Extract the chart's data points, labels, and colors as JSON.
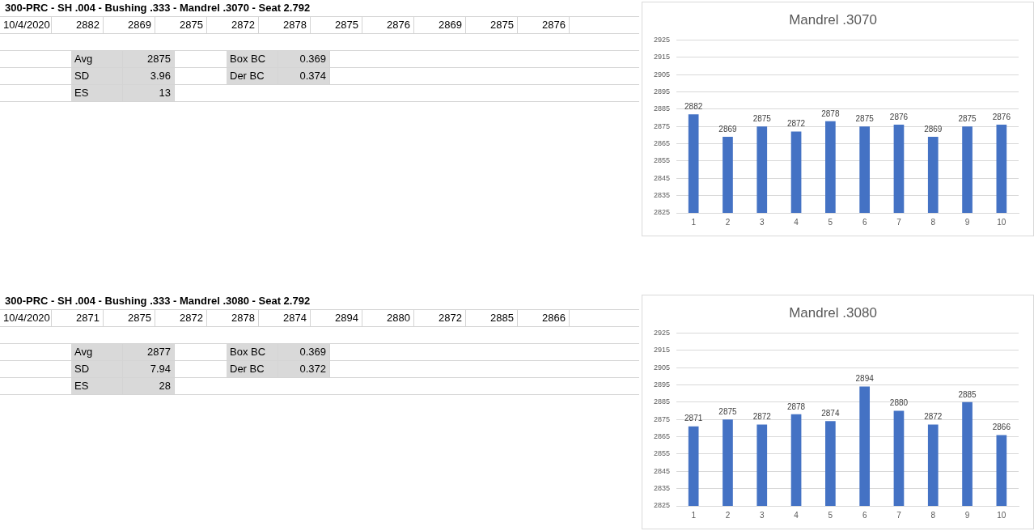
{
  "chart_data": [
    {
      "type": "other",
      "title": "300-PRC - SH .004 - Bushing .333 - Mandrel .3070 - Seat 2.792",
      "annotations": [
        "10/4/2020",
        "2882",
        "2869",
        "2875",
        "2872",
        "2878",
        "2875",
        "2876",
        "2869",
        "2875",
        "2876",
        "Avg",
        "2875",
        "Box BC",
        "0.369",
        "SD",
        "3.96",
        "Der BC",
        "0.374",
        "ES",
        "13"
      ]
    },
    {
      "type": "bar",
      "title": "Mandrel .3070",
      "categories": [
        "1",
        "2",
        "3",
        "4",
        "5",
        "6",
        "7",
        "8",
        "9",
        "10"
      ],
      "values": [
        2882,
        2869,
        2875,
        2872,
        2878,
        2875,
        2876,
        2869,
        2875,
        2876
      ],
      "color": "#4472c4",
      "ylim": [
        2825,
        2925
      ],
      "yticks": [
        2825,
        2835,
        2845,
        2855,
        2865,
        2875,
        2885,
        2895,
        2905,
        2915,
        2925
      ],
      "grid": "y",
      "data_labels": true
    },
    {
      "type": "other",
      "title": "300-PRC - SH .004 - Bushing .333 - Mandrel .3080 - Seat 2.792",
      "annotations": [
        "10/4/2020",
        "2871",
        "2875",
        "2872",
        "2878",
        "2874",
        "2894",
        "2880",
        "2872",
        "2885",
        "2866",
        "Avg",
        "2877",
        "Box BC",
        "0.369",
        "SD",
        "7.94",
        "Der BC",
        "0.372",
        "ES",
        "28"
      ]
    },
    {
      "type": "bar",
      "title": "Mandrel .3080",
      "categories": [
        "1",
        "2",
        "3",
        "4",
        "5",
        "6",
        "7",
        "8",
        "9",
        "10"
      ],
      "values": [
        2871,
        2875,
        2872,
        2878,
        2874,
        2894,
        2880,
        2872,
        2885,
        2866
      ],
      "color": "#4472c4",
      "ylim": [
        2825,
        2925
      ],
      "yticks": [
        2825,
        2835,
        2845,
        2855,
        2865,
        2875,
        2885,
        2895,
        2905,
        2915,
        2925
      ],
      "grid": "y",
      "data_labels": true
    }
  ]
}
